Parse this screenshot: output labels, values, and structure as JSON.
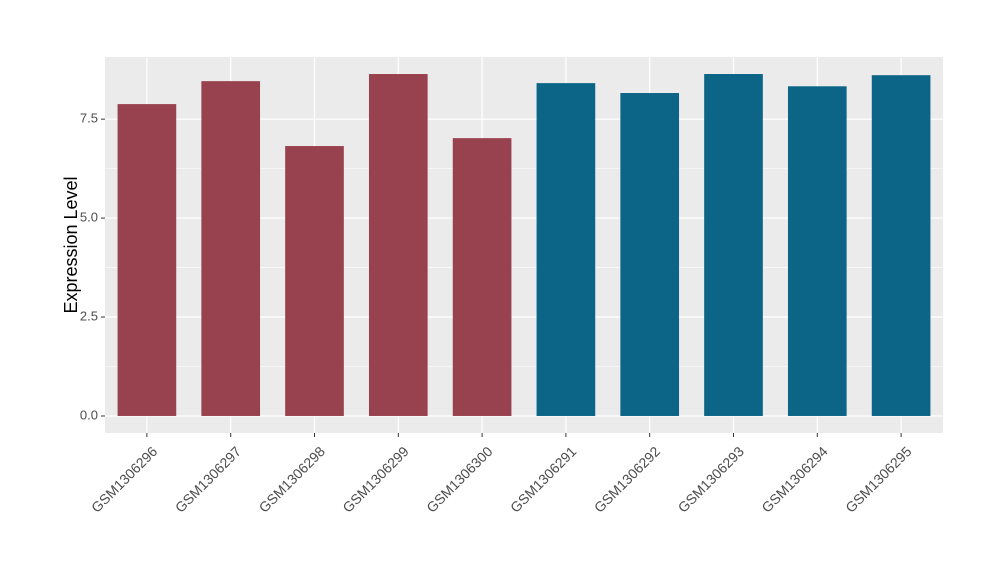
{
  "chart_data": {
    "type": "bar",
    "y_label": "Expression Level",
    "categories": [
      "GSM1306296",
      "GSM1306297",
      "GSM1306298",
      "GSM1306299",
      "GSM1306300",
      "GSM1306291",
      "GSM1306292",
      "GSM1306293",
      "GSM1306294",
      "GSM1306295"
    ],
    "values": [
      7.88,
      8.46,
      6.82,
      8.64,
      7.02,
      8.41,
      8.16,
      8.64,
      8.33,
      8.61
    ],
    "colors": [
      "#99424f",
      "#99424f",
      "#99424f",
      "#99424f",
      "#99424f",
      "#0c6586",
      "#0c6586",
      "#0c6586",
      "#0c6586",
      "#0c6586"
    ],
    "ylim": [
      -0.43,
      9.07
    ],
    "yticks": [
      {
        "value": 0,
        "label": "0.0"
      },
      2.5,
      {
        "value": 5,
        "label": "5.0"
      },
      7.5
    ],
    "grid": true
  }
}
